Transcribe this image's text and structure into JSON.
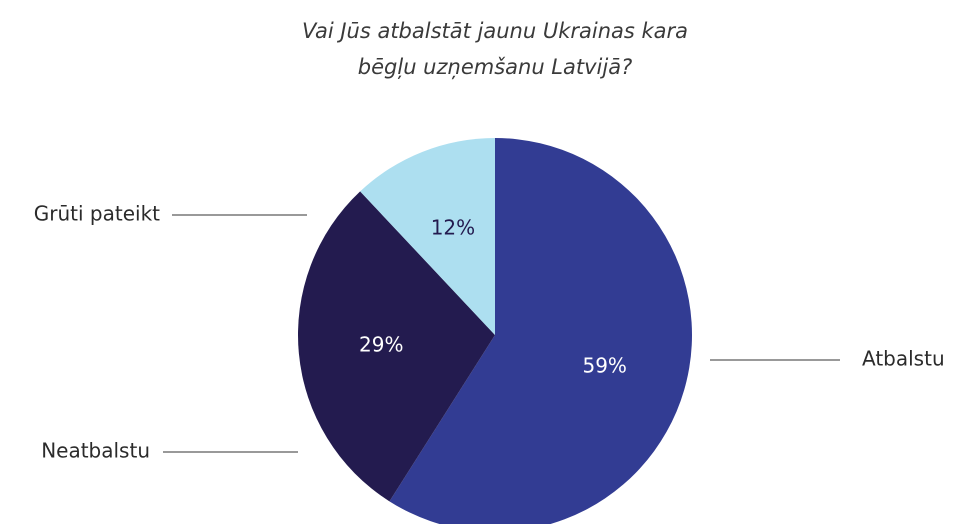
{
  "chart_data": {
    "type": "pie",
    "title": [
      "Vai Jūs atbalstāt jaunu Ukrainas kara",
      "bēgļu uzņemšanu Latvijā?"
    ],
    "categories": [
      "Atbalstu",
      "Neatbalstu",
      "Grūti pateikt"
    ],
    "values": [
      59,
      29,
      12
    ],
    "value_labels": [
      "59%",
      "29%",
      "12%"
    ],
    "colors": [
      "#323c93",
      "#231b4f",
      "#addff0"
    ]
  }
}
